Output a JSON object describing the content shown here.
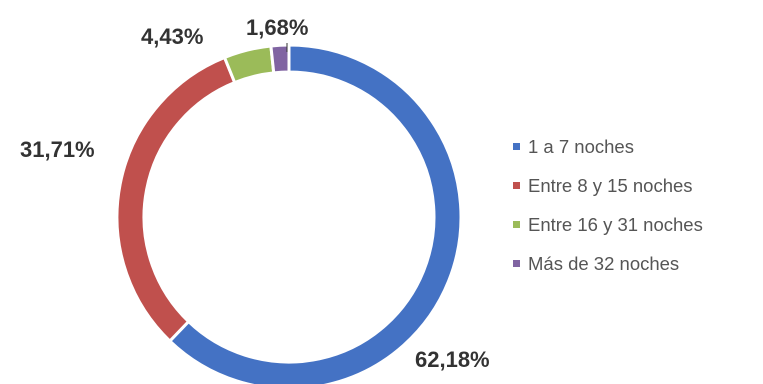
{
  "chart_data": {
    "type": "pie",
    "variant": "donut",
    "legend_position": "right",
    "slices": [
      {
        "name": "1 a 7 noches",
        "value": 62.18,
        "label": "62,18%",
        "color": "#4472c4"
      },
      {
        "name": "Entre 8 y 15 noches",
        "value": 31.71,
        "label": "31,71%",
        "color": "#c0504d"
      },
      {
        "name": "Entre 16 y 31 noches",
        "value": 4.43,
        "label": "4,43%",
        "color": "#9bbb59"
      },
      {
        "name": "Más de 32 noches",
        "value": 1.68,
        "label": "1,68%",
        "color": "#8064a2"
      }
    ]
  }
}
